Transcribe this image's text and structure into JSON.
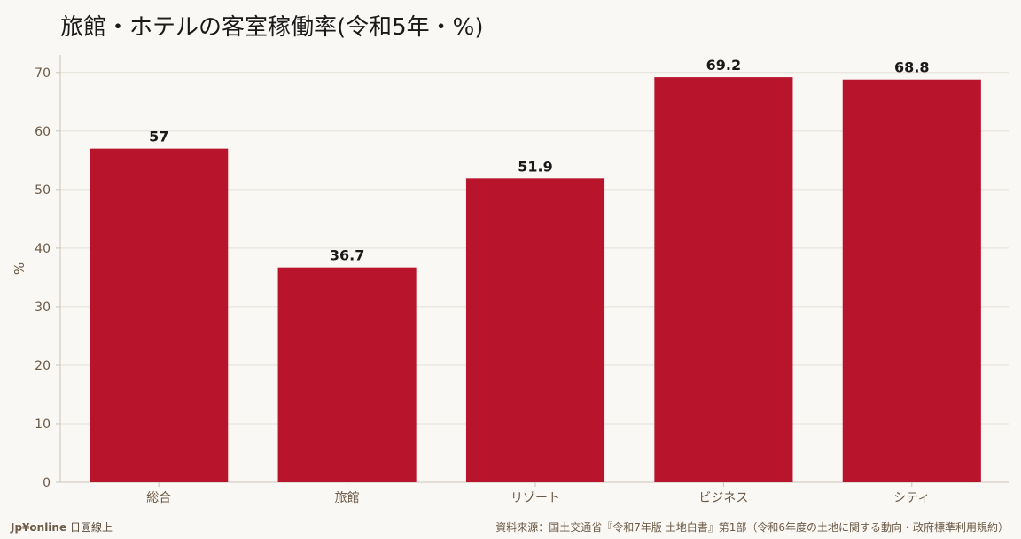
{
  "title": "旅館・ホテルの客室稼働率(令和5年・%)",
  "footer": {
    "brand": "Jp¥online",
    "brand_suffix": "日圓線上",
    "source": "資料來源：国土交通省『令和7年版 土地白書』第1部（令和6年度の土地に関する動向・政府標準利用規約）"
  },
  "colors": {
    "bar": "#b8152c",
    "grid": "#e4e0d8",
    "axis": "#c9c3b8",
    "tick_text": "#6b5a47",
    "label_text": "#1a1a1a"
  },
  "chart_data": {
    "type": "bar",
    "title": "旅館・ホテルの客室稼働率(令和5年・%)",
    "xlabel": "",
    "ylabel": "%",
    "categories": [
      "総合",
      "旅館",
      "リゾート",
      "ビジネス",
      "シティ"
    ],
    "values": [
      57,
      36.7,
      51.9,
      69.2,
      68.8
    ],
    "value_labels": [
      "57",
      "36.7",
      "51.9",
      "69.2",
      "68.8"
    ],
    "ylim": [
      0,
      73
    ],
    "yticks": [
      0,
      10,
      20,
      30,
      40,
      50,
      60,
      70
    ],
    "grid": true,
    "legend": "none"
  }
}
